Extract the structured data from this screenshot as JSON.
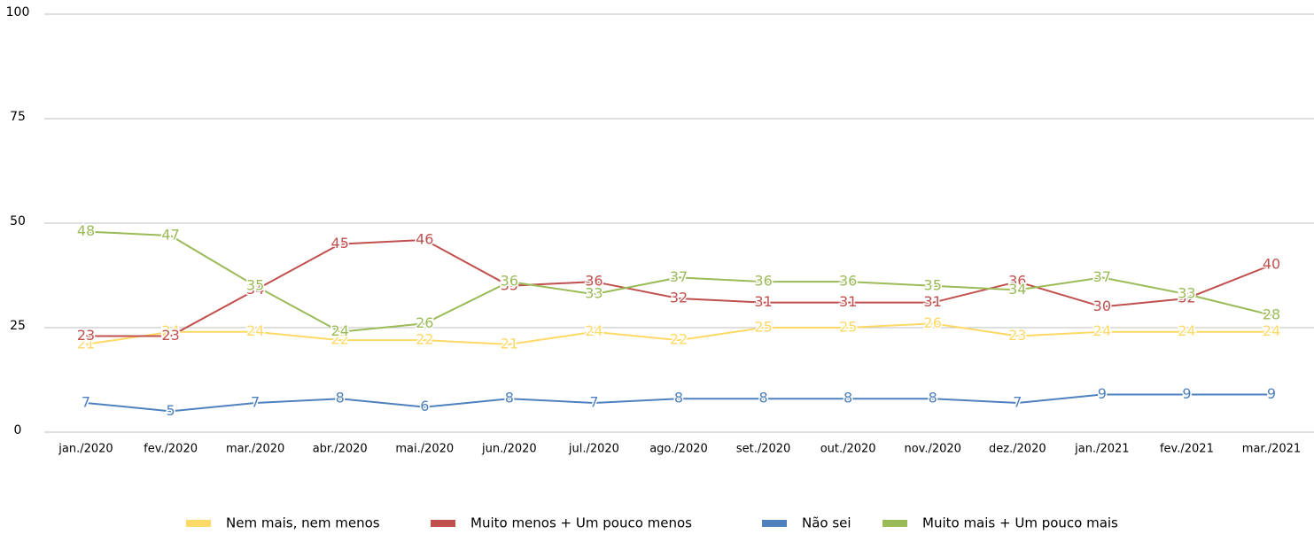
{
  "chart_data": {
    "type": "line",
    "categories": [
      "jan./2020",
      "fev./2020",
      "mar./2020",
      "abr./2020",
      "mai./2020",
      "jun./2020",
      "jul./2020",
      "ago./2020",
      "set./2020",
      "out./2020",
      "nov./2020",
      "dez./2020",
      "jan./2021",
      "fev./2021",
      "mar./2021"
    ],
    "series": [
      {
        "name": "Nem mais, nem menos",
        "color": "#ffd966",
        "values": [
          21,
          24,
          24,
          22,
          22,
          21,
          24,
          22,
          25,
          25,
          26,
          23,
          24,
          24,
          24
        ]
      },
      {
        "name": "Muito menos + Um pouco menos",
        "color": "#c0504d",
        "values": [
          23,
          23,
          34,
          45,
          46,
          35,
          36,
          32,
          31,
          31,
          31,
          36,
          30,
          32,
          40
        ]
      },
      {
        "name": "Não sei",
        "color": "#4f81bd",
        "values": [
          7,
          5,
          7,
          8,
          6,
          8,
          7,
          8,
          8,
          8,
          8,
          7,
          9,
          9,
          9
        ]
      },
      {
        "name": "Muito mais + Um pouco mais",
        "color": "#9bbb59",
        "values": [
          48,
          47,
          35,
          24,
          26,
          36,
          33,
          37,
          36,
          36,
          35,
          34,
          37,
          33,
          28
        ]
      }
    ],
    "ylim": [
      0,
      100
    ],
    "yticks": [
      0,
      25,
      50,
      75,
      100
    ],
    "grid": true,
    "legend": "bottom"
  }
}
